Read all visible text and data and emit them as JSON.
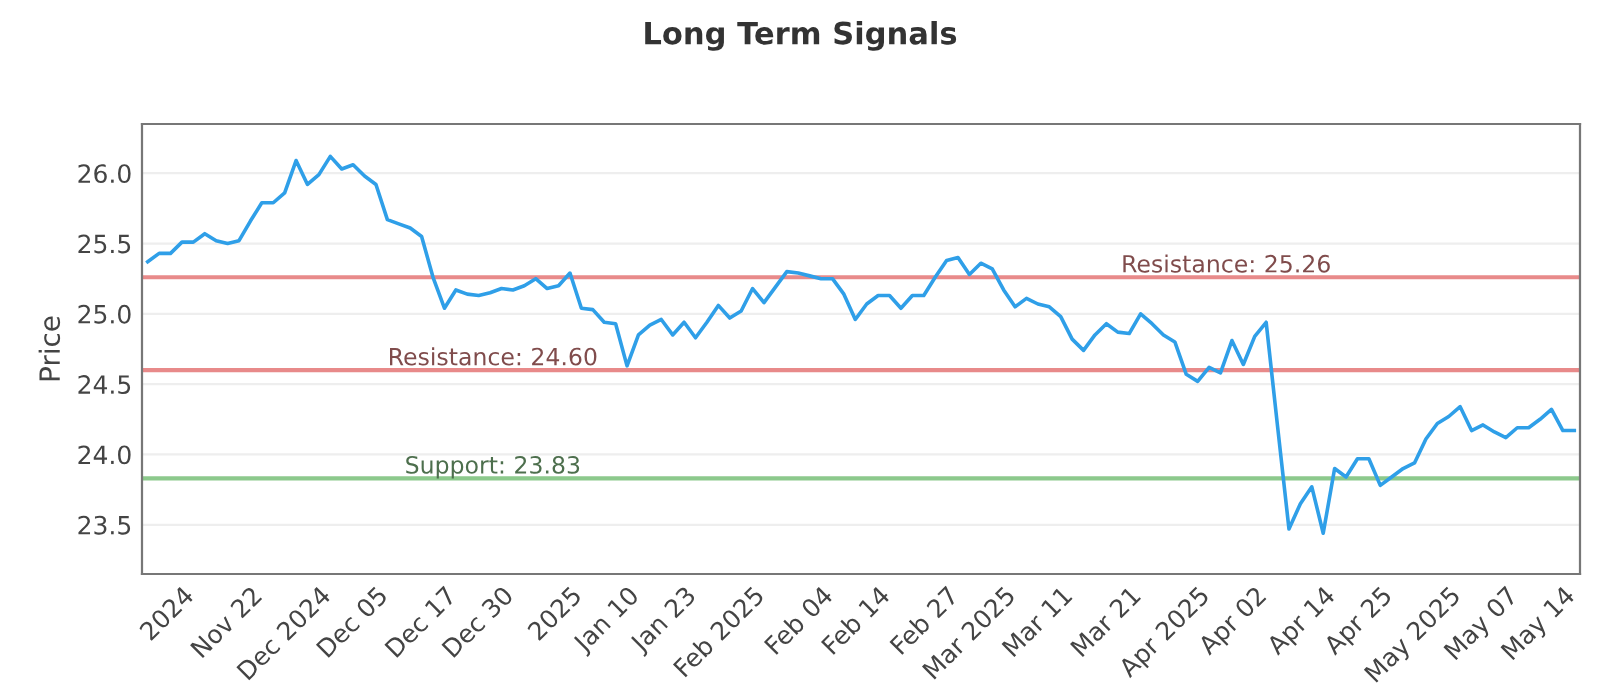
{
  "chart_data": {
    "type": "line",
    "title": "Long Term Signals",
    "ylabel": "Price",
    "categories": [
      null,
      null,
      null,
      "2024",
      null,
      null,
      null,
      null,
      null,
      "Nov 22",
      null,
      null,
      null,
      null,
      null,
      "Dec 2024",
      null,
      null,
      null,
      null,
      "Dec 05",
      null,
      null,
      null,
      null,
      null,
      "Dec 17",
      null,
      null,
      null,
      null,
      "Dec 30",
      null,
      null,
      null,
      null,
      null,
      "2025",
      null,
      null,
      null,
      null,
      "Jan 10",
      null,
      null,
      null,
      null,
      "Jan 23",
      null,
      null,
      null,
      null,
      null,
      "Feb 2025",
      null,
      null,
      null,
      null,
      null,
      "Feb 04",
      null,
      null,
      null,
      null,
      "Feb 14",
      null,
      null,
      null,
      null,
      null,
      "Feb 27",
      null,
      null,
      null,
      null,
      "Mar 2025",
      null,
      null,
      null,
      null,
      "Mar 11",
      null,
      null,
      null,
      null,
      null,
      "Mar 21",
      null,
      null,
      null,
      null,
      null,
      "Apr 2025",
      null,
      null,
      null,
      null,
      "Apr 02",
      null,
      null,
      null,
      null,
      null,
      "Apr 14",
      null,
      null,
      null,
      null,
      "Apr 25",
      null,
      null,
      null,
      null,
      null,
      "May 2025",
      null,
      null,
      null,
      null,
      "May 07",
      null,
      null,
      null,
      null,
      "May 14",
      null
    ],
    "series": [
      {
        "color": "#2f9fe8",
        "values": [
          25.37,
          25.43,
          25.43,
          25.51,
          25.51,
          25.57,
          25.52,
          25.5,
          25.52,
          25.66,
          25.79,
          25.79,
          25.86,
          26.09,
          25.92,
          25.99,
          26.12,
          26.03,
          26.06,
          25.98,
          25.92,
          25.67,
          25.64,
          25.61,
          25.55,
          25.26,
          25.04,
          25.17,
          25.14,
          25.13,
          25.15,
          25.18,
          25.17,
          25.2,
          25.25,
          25.18,
          25.2,
          25.29,
          25.04,
          25.03,
          24.94,
          24.93,
          24.63,
          24.85,
          24.92,
          24.96,
          24.85,
          24.94,
          24.83,
          24.94,
          25.06,
          24.97,
          25.02,
          25.18,
          25.08,
          25.19,
          25.3,
          25.29,
          25.27,
          25.25,
          25.25,
          25.14,
          24.96,
          25.07,
          25.13,
          25.13,
          25.04,
          25.13,
          25.13,
          25.26,
          25.38,
          25.4,
          25.28,
          25.36,
          25.32,
          25.17,
          25.05,
          25.11,
          25.07,
          25.05,
          24.98,
          24.82,
          24.74,
          24.85,
          24.93,
          24.87,
          24.86,
          25.0,
          24.93,
          24.85,
          24.8,
          24.57,
          24.52,
          24.62,
          24.58,
          24.81,
          24.64,
          24.84,
          24.94,
          24.2,
          23.47,
          23.65,
          23.77,
          23.44,
          23.9,
          23.84,
          23.97,
          23.97,
          23.78,
          23.84,
          23.9,
          23.94,
          24.11,
          24.22,
          24.27,
          24.34,
          24.17,
          24.21,
          24.16,
          24.12,
          24.19,
          24.19,
          24.25,
          24.32,
          24.17,
          24.17
        ]
      }
    ],
    "ylim": [
      23.15,
      26.35
    ],
    "yticks": [
      23.5,
      {
        "value": 24,
        "label": "24.0"
      },
      24.5,
      {
        "value": 25,
        "label": "25.0"
      },
      25.5,
      {
        "value": 26,
        "label": "26.0"
      }
    ],
    "ref_lines": [
      {
        "axis": "y",
        "value": 25.26,
        "label": "Resistance: 25.26",
        "color": "#e88a8a"
      },
      {
        "axis": "y",
        "value": 24.6,
        "label": "Resistance: 24.60",
        "color": "#e88a8a"
      },
      {
        "axis": "y",
        "value": 23.83,
        "label": "Support: 23.83",
        "color": "#8cc98c"
      }
    ],
    "grid": "y",
    "marker": "none",
    "line_style": "solid"
  }
}
